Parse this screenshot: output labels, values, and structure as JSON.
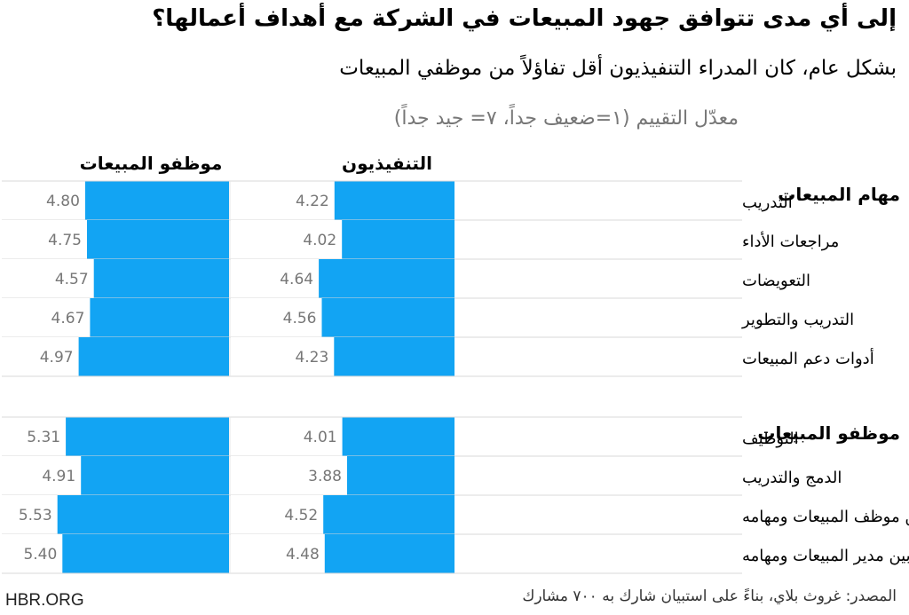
{
  "header": {
    "title": "إلى أي مدى تتوافق جهود المبيعات في الشركة مع أهداف أعمالها؟",
    "subtitle": "بشكل عام، كان المدراء التنفيذيون أقل تفاؤلاً من موظفي المبيعات"
  },
  "footer": {
    "source": "المصدر: غروث بلاي، بناءً على استبيان شارك به ٧٠٠ مشارك",
    "brand": "HBR.ORG"
  },
  "colors": {
    "bar": "#12a4f3",
    "label_value": "#777777",
    "row_rule": "#d8d8d8"
  },
  "chart_data": {
    "type": "bar",
    "orientation": "horizontal",
    "scale_note": "معدّل التقييم (١=ضعيف جداً، ٧= جيد جداً)",
    "value_range": [
      1,
      7
    ],
    "columns": [
      "التنفيذيون",
      "موظفو المبيعات"
    ],
    "series": [
      {
        "name": "التنفيذيون",
        "values": [
          4.22,
          4.02,
          4.64,
          4.56,
          4.23,
          4.01,
          3.88,
          4.52,
          4.48
        ]
      },
      {
        "name": "موظفو المبيعات",
        "values": [
          4.8,
          4.75,
          4.57,
          4.67,
          4.97,
          5.31,
          4.91,
          5.53,
          5.4
        ]
      }
    ],
    "groups": [
      {
        "label": "مهام المبيعات",
        "categories": [
          "التدريب",
          "مراجعات الأداء",
          "التعويضات",
          "التدريب والتطوير",
          "أدوات دعم المبيعات"
        ]
      },
      {
        "label": "موظفو المبيعات",
        "categories": [
          "التوظيف",
          "الدمج والتدريب",
          "التوفيق بين موظف المبيعات ومهامه",
          "التوفيق بين مدير المبيعات ومهامه"
        ]
      }
    ]
  }
}
